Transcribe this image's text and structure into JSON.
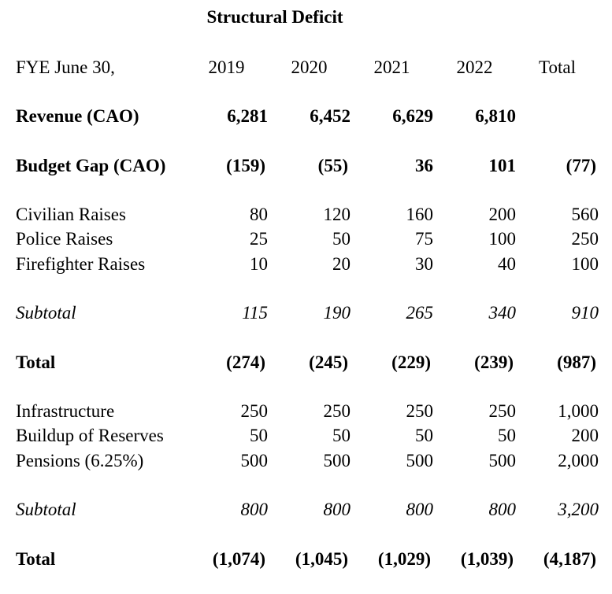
{
  "title": "Structural Deficit",
  "table": {
    "header": {
      "label": "FYE June 30,",
      "columns": [
        "2019",
        "2020",
        "2021",
        "2022",
        "Total"
      ]
    },
    "rows": [
      {
        "label": "Revenue (CAO)",
        "style": "bold",
        "gap_before": true,
        "values": [
          "6,281",
          "6,452",
          "6,629",
          "6,810",
          ""
        ]
      },
      {
        "label": "Budget Gap (CAO)",
        "style": "bold",
        "gap_before": true,
        "values": [
          "(159)",
          "(55)",
          "36",
          "101",
          "(77)"
        ]
      },
      {
        "label": "Civilian Raises",
        "style": "normal",
        "gap_before": true,
        "values": [
          "80",
          "120",
          "160",
          "200",
          "560"
        ]
      },
      {
        "label": "Police Raises",
        "style": "normal",
        "gap_before": false,
        "values": [
          "25",
          "50",
          "75",
          "100",
          "250"
        ]
      },
      {
        "label": "Firefighter Raises",
        "style": "normal",
        "gap_before": false,
        "values": [
          "10",
          "20",
          "30",
          "40",
          "100"
        ]
      },
      {
        "label": "Subtotal",
        "style": "italic",
        "gap_before": true,
        "values": [
          "115",
          "190",
          "265",
          "340",
          "910"
        ]
      },
      {
        "label": "Total",
        "style": "bold",
        "gap_before": true,
        "values": [
          "(274)",
          "(245)",
          "(229)",
          "(239)",
          "(987)"
        ]
      },
      {
        "label": "Infrastructure",
        "style": "normal",
        "gap_before": true,
        "values": [
          "250",
          "250",
          "250",
          "250",
          "1,000"
        ]
      },
      {
        "label": "Buildup of Reserves",
        "style": "normal",
        "gap_before": false,
        "values": [
          "50",
          "50",
          "50",
          "50",
          "200"
        ]
      },
      {
        "label": "Pensions (6.25%)",
        "style": "normal",
        "gap_before": false,
        "values": [
          "500",
          "500",
          "500",
          "500",
          "2,000"
        ]
      },
      {
        "label": "Subtotal",
        "style": "italic",
        "gap_before": true,
        "values": [
          "800",
          "800",
          "800",
          "800",
          "3,200"
        ]
      },
      {
        "label": "Total",
        "style": "bold",
        "gap_before": true,
        "values": [
          "(1,074)",
          "(1,045)",
          "(1,029)",
          "(1,039)",
          "(4,187)"
        ]
      }
    ],
    "text_color": "#000000",
    "background_color": "#ffffff"
  }
}
